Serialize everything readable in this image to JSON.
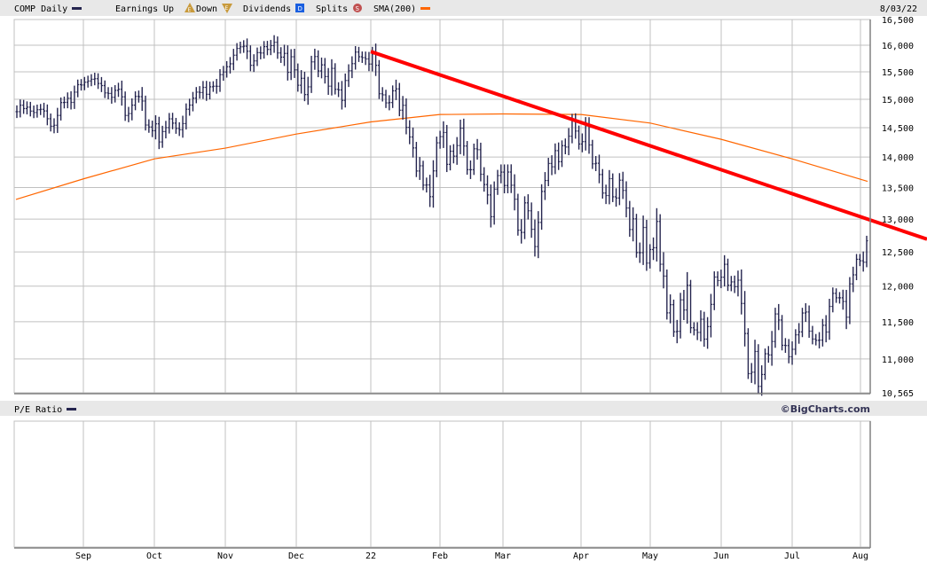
{
  "header": {
    "symbol_label": "COMP Daily",
    "earnings_label": "Earnings",
    "up_label": "Up",
    "down_label": "Down",
    "dividends_label": "Dividends",
    "splits_label": "Splits",
    "sma_label": "SMA(200)",
    "date": "8/03/22",
    "earnings_up_glyph": "E",
    "earnings_down_glyph": "E",
    "dividends_glyph": "D",
    "splits_glyph": "S"
  },
  "lower_panel": {
    "label": "P/E Ratio",
    "brand": "©BigCharts.com"
  },
  "colors": {
    "price": "#25254f",
    "sma": "#ff6600",
    "trendline": "#ff0000",
    "grid": "#c0c0c0",
    "strip": "#e8e8e8",
    "earnings": "#c89a3c",
    "dividends": "#1a5fe0",
    "splits": "#c05050"
  },
  "chart_data": {
    "type": "ohlc-bar",
    "scale": "log",
    "grid": true,
    "ylim": [
      10565,
      16500
    ],
    "y_ticks": [
      "16,500",
      "16,000",
      "15,500",
      "15,000",
      "14,500",
      "14,000",
      "13,500",
      "13,000",
      "12,500",
      "12,000",
      "11,500",
      "11,000",
      "10,565"
    ],
    "y_tick_values": [
      16500,
      16000,
      15500,
      15000,
      14500,
      14000,
      13500,
      13000,
      12500,
      12000,
      11500,
      11000,
      10565
    ],
    "x_ticks": [
      "Sep",
      "Oct",
      "Nov",
      "Dec",
      "22",
      "Feb",
      "Mar",
      "Apr",
      "May",
      "Jun",
      "Jul",
      "Aug"
    ],
    "series": [
      {
        "name": "COMP Daily",
        "type": "close",
        "values": [
          14780,
          14895,
          14835,
          14860,
          14790,
          14765,
          14815,
          14822,
          14793,
          14656,
          14525,
          14542,
          14714,
          14942,
          14945,
          15019,
          14945,
          15129,
          15265,
          15259,
          15310,
          15331,
          15363,
          15374,
          15286,
          15248,
          15115,
          15105,
          15037,
          15161,
          15181,
          15044,
          14713,
          14747,
          14896,
          15052,
          15047,
          14969,
          14546,
          14512,
          14448,
          14567,
          14255,
          14433,
          14501,
          14654,
          14579,
          14486,
          14465,
          14571,
          14823,
          14897,
          15021,
          15129,
          15122,
          15215,
          15090,
          15226,
          15236,
          15235,
          15448,
          15498,
          15595,
          15650,
          15811,
          15940,
          15971,
          15982,
          15886,
          15622,
          15704,
          15860,
          15853,
          15974,
          15921,
          15993,
          16057,
          15854,
          15775,
          15845,
          15491,
          15782,
          15537,
          15254,
          15381,
          15085,
          15225,
          15686,
          15786,
          15517,
          15630,
          15413,
          15237,
          15565,
          15180,
          15169,
          14980,
          15341,
          15521,
          15653,
          15871,
          15782,
          15766,
          15741,
          15645,
          15833,
          15622,
          15100,
          15080,
          14936,
          14942,
          15153,
          15188,
          14806,
          14893,
          14506,
          14340,
          14154,
          13769,
          13855,
          13539,
          13542,
          13353,
          13771,
          14240,
          14346,
          14417,
          13879,
          14098,
          14015,
          14194,
          14491,
          14186,
          13791,
          13790,
          14139,
          14124,
          13716,
          13548,
          13381,
          13037,
          13474,
          13694,
          13751,
          13532,
          13752,
          13537,
          13313,
          12830,
          12795,
          13255,
          13130,
          12843,
          12581,
          12949,
          13437,
          13614,
          13893,
          13838,
          14108,
          13923,
          14192,
          14169,
          14354,
          14619,
          14442,
          14220,
          14261,
          14532,
          14204,
          13888,
          13897,
          13711,
          13411,
          13371,
          13644,
          13351,
          13332,
          13619,
          13453,
          13174,
          12839,
          13004,
          12490,
          12489,
          12871,
          12335,
          12536,
          12563,
          12964,
          12318,
          12145,
          11623,
          11737,
          11364,
          11370,
          11805,
          11663,
          12012,
          11418,
          11389,
          11355,
          11535,
          11264,
          11434,
          11741,
          12131,
          12081,
          12129,
          12317,
          12013,
          12061,
          11992,
          12086,
          11754,
          11340,
          10809,
          10828,
          11099,
          10646,
          10798,
          11069,
          11053,
          11232,
          11608,
          11524,
          11181,
          11178,
          11029,
          11128,
          11322,
          11362,
          11621,
          11635,
          11372,
          11265,
          11248,
          11251,
          11452,
          11360,
          11713,
          11897,
          11834,
          11834,
          11782,
          11563,
          12032,
          12163,
          12391,
          12369,
          12348,
          12668
        ]
      },
      {
        "name": "SMA(200)",
        "type": "line",
        "points": [
          [
            "start",
            13310
          ],
          [
            "Sep",
            13640
          ],
          [
            "Oct",
            13970
          ],
          [
            "Nov",
            14150
          ],
          [
            "Dec",
            14390
          ],
          [
            "22",
            14600
          ],
          [
            "Feb",
            14730
          ],
          [
            "Mar",
            14740
          ],
          [
            "Apr",
            14730
          ],
          [
            "May",
            14580
          ],
          [
            "Jun",
            14300
          ],
          [
            "Jul",
            13970
          ],
          [
            "end",
            13600
          ]
        ]
      },
      {
        "type": "trendline",
        "points": [
          [
            "22",
            15880
          ],
          [
            "end",
            13000
          ]
        ]
      }
    ]
  }
}
